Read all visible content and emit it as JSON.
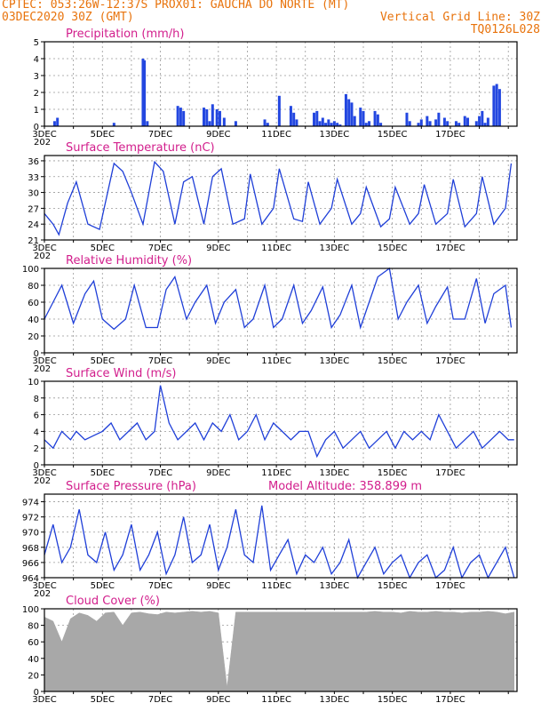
{
  "header": {
    "line1": "CPTEC:   053:26W-12:37S   PROX01: GAUCHA DO NORTE (MT)",
    "line2_left": "03DEC2020 30Z (GMT)",
    "line2_right": "Vertical Grid Line: 30Z",
    "line3_right": "TQ0126L028"
  },
  "x_labels": [
    "3DEC",
    "5DEC",
    "7DEC",
    "9DEC",
    "11DEC",
    "13DEC",
    "15DEC",
    "17DEC"
  ],
  "axis_year_fragment": "202",
  "colors": {
    "line": "#1f3fd8",
    "bar": "#2347e0",
    "title": "#d21e8c",
    "header": "#e8730c",
    "cloud": "#a8a8a8"
  },
  "chart_data": [
    {
      "type": "bar",
      "title": "Precipitation (mm/h)",
      "ylim": [
        0,
        5
      ],
      "yticks": [
        "0",
        "1",
        "2",
        "3",
        "4",
        "5"
      ],
      "x": [
        0.35,
        0.45,
        2.4,
        3.4,
        3.45,
        3.55,
        4.6,
        4.7,
        4.8,
        5.5,
        5.6,
        5.7,
        5.8,
        5.95,
        6.05,
        6.2,
        6.6,
        7.6,
        7.7,
        8.1,
        8.5,
        8.6,
        8.7,
        9.3,
        9.4,
        9.5,
        9.6,
        9.7,
        9.8,
        9.9,
        10.0,
        10.1,
        10.2,
        10.4,
        10.5,
        10.6,
        10.7,
        10.9,
        11.0,
        11.1,
        11.2,
        11.4,
        11.5,
        11.6,
        12.5,
        12.6,
        12.9,
        13.0,
        13.2,
        13.3,
        13.5,
        13.6,
        13.8,
        13.9,
        14.2,
        14.3,
        14.5,
        14.6,
        14.9,
        15.0,
        15.1,
        15.2,
        15.3,
        15.5,
        15.6,
        15.7
      ],
      "values": [
        0.3,
        0.5,
        0.2,
        4.0,
        3.9,
        0.3,
        1.2,
        1.1,
        0.9,
        1.1,
        1.0,
        0.3,
        1.3,
        1.0,
        0.9,
        0.5,
        0.3,
        0.4,
        0.2,
        1.8,
        1.2,
        0.8,
        0.4,
        0.8,
        0.9,
        0.3,
        0.5,
        0.2,
        0.4,
        0.2,
        0.3,
        0.2,
        0.1,
        1.9,
        1.6,
        1.4,
        0.6,
        1.1,
        0.9,
        0.2,
        0.3,
        0.9,
        0.7,
        0.2,
        0.8,
        0.3,
        0.2,
        0.4,
        0.6,
        0.3,
        0.4,
        0.8,
        0.5,
        0.3,
        0.3,
        0.2,
        0.6,
        0.5,
        0.3,
        0.6,
        0.9,
        0.2,
        0.5,
        2.4,
        2.5,
        2.2
      ]
    },
    {
      "type": "line",
      "title": "Surface Temperature (nC)",
      "ylim": [
        21,
        37
      ],
      "yticks": [
        "21",
        "24",
        "27",
        "30",
        "33",
        "36"
      ],
      "x": [
        0,
        0.3,
        0.5,
        0.8,
        1.1,
        1.5,
        1.9,
        2.4,
        2.7,
        3.0,
        3.4,
        3.8,
        4.1,
        4.5,
        4.8,
        5.1,
        5.5,
        5.8,
        6.1,
        6.5,
        6.9,
        7.1,
        7.5,
        7.9,
        8.1,
        8.6,
        8.9,
        9.1,
        9.5,
        9.9,
        10.1,
        10.6,
        10.9,
        11.1,
        11.6,
        11.9,
        12.1,
        12.6,
        12.9,
        13.1,
        13.5,
        13.9,
        14.1,
        14.5,
        14.9,
        15.1,
        15.5,
        15.9,
        16.1
      ],
      "values": [
        26,
        24,
        22,
        28,
        32,
        24,
        23,
        35.5,
        34,
        30,
        24,
        35.8,
        34,
        24,
        32,
        33,
        24,
        33,
        34.5,
        24,
        25,
        33.5,
        24,
        27,
        34.5,
        25,
        24.5,
        32,
        24,
        27,
        32.5,
        24,
        26,
        31,
        23.5,
        25,
        31,
        24,
        26,
        31.5,
        24,
        26,
        32.5,
        23.5,
        26,
        33,
        24,
        27,
        35.5
      ]
    },
    {
      "type": "line",
      "title": "Relative Humidity (%)",
      "ylim": [
        0,
        100
      ],
      "yticks": [
        "0",
        "20",
        "40",
        "60",
        "80",
        "100"
      ],
      "x": [
        0,
        0.3,
        0.6,
        1.0,
        1.4,
        1.7,
        2.0,
        2.4,
        2.8,
        3.1,
        3.5,
        3.9,
        4.2,
        4.5,
        4.9,
        5.2,
        5.6,
        5.9,
        6.2,
        6.6,
        6.9,
        7.2,
        7.6,
        7.9,
        8.2,
        8.6,
        8.9,
        9.2,
        9.6,
        9.9,
        10.2,
        10.6,
        10.9,
        11.2,
        11.5,
        11.9,
        12.2,
        12.5,
        12.9,
        13.2,
        13.5,
        13.9,
        14.1,
        14.5,
        14.9,
        15.2,
        15.5,
        15.9,
        16.1
      ],
      "values": [
        40,
        60,
        80,
        35,
        70,
        85,
        40,
        28,
        40,
        80,
        30,
        30,
        75,
        90,
        40,
        60,
        80,
        35,
        60,
        75,
        30,
        40,
        80,
        30,
        40,
        80,
        35,
        50,
        78,
        30,
        45,
        80,
        30,
        60,
        90,
        100,
        40,
        60,
        80,
        35,
        55,
        78,
        40,
        40,
        88,
        35,
        70,
        80,
        30
      ]
    },
    {
      "type": "line",
      "title": "Surface Wind (m/s)",
      "ylim": [
        0,
        10
      ],
      "yticks": [
        "0",
        "2",
        "4",
        "6",
        "8",
        "10"
      ],
      "x": [
        0,
        0.3,
        0.6,
        0.9,
        1.1,
        1.4,
        1.7,
        2.0,
        2.3,
        2.6,
        2.9,
        3.2,
        3.5,
        3.8,
        4.0,
        4.3,
        4.6,
        4.9,
        5.2,
        5.5,
        5.8,
        6.1,
        6.4,
        6.7,
        7.0,
        7.3,
        7.6,
        7.9,
        8.2,
        8.5,
        8.8,
        9.1,
        9.4,
        9.7,
        10.0,
        10.3,
        10.6,
        10.9,
        11.2,
        11.5,
        11.8,
        12.1,
        12.4,
        12.7,
        13.0,
        13.3,
        13.6,
        13.9,
        14.2,
        14.5,
        14.8,
        15.1,
        15.4,
        15.7,
        16.0,
        16.2
      ],
      "values": [
        3,
        2,
        4,
        3,
        4,
        3,
        3.5,
        4,
        5,
        3,
        4,
        5,
        3,
        4,
        9.5,
        5,
        3,
        4,
        5,
        3,
        5,
        4,
        6,
        3,
        4,
        6,
        3,
        5,
        4,
        3,
        4,
        4,
        1,
        3,
        4,
        2,
        3,
        4,
        2,
        3,
        4,
        2,
        4,
        3,
        4,
        3,
        6,
        4,
        2,
        3,
        4,
        2,
        3,
        4,
        3,
        3
      ]
    },
    {
      "type": "line",
      "title": "Surface Pressure (hPa)",
      "annotation": "Model Altitude: 358.899  m",
      "ylim": [
        964,
        975
      ],
      "yticks": [
        "964",
        "966",
        "968",
        "970",
        "972",
        "974"
      ],
      "x": [
        0,
        0.3,
        0.6,
        0.9,
        1.2,
        1.5,
        1.8,
        2.1,
        2.4,
        2.7,
        3.0,
        3.3,
        3.6,
        3.9,
        4.2,
        4.5,
        4.8,
        5.1,
        5.4,
        5.7,
        6.0,
        6.3,
        6.6,
        6.9,
        7.2,
        7.5,
        7.8,
        8.1,
        8.4,
        8.7,
        9.0,
        9.3,
        9.6,
        9.9,
        10.2,
        10.5,
        10.8,
        11.1,
        11.4,
        11.7,
        12.0,
        12.3,
        12.6,
        12.9,
        13.2,
        13.5,
        13.8,
        14.1,
        14.4,
        14.7,
        15.0,
        15.3,
        15.6,
        15.9,
        16.2
      ],
      "values": [
        967,
        971,
        966,
        968,
        973,
        967,
        966,
        970,
        965,
        967,
        971,
        965,
        967,
        970,
        964.5,
        967,
        972,
        966,
        967,
        971,
        965,
        968,
        973,
        967,
        966,
        973.5,
        965,
        967,
        969,
        964.5,
        967,
        966,
        968,
        964.5,
        966,
        969,
        964,
        966,
        968,
        964.5,
        966,
        967,
        964,
        966,
        967,
        964,
        965,
        968,
        964,
        966,
        967,
        964,
        966,
        968,
        964
      ]
    },
    {
      "type": "area",
      "title": "Cloud Cover (%)",
      "ylim": [
        0,
        100
      ],
      "yticks": [
        "0",
        "20",
        "40",
        "60",
        "80",
        "100"
      ],
      "x": [
        0,
        0.3,
        0.6,
        0.9,
        1.2,
        1.5,
        1.8,
        2.1,
        2.4,
        2.7,
        3.0,
        3.3,
        3.6,
        3.9,
        4.2,
        4.5,
        4.8,
        5.1,
        5.4,
        5.7,
        6.0,
        6.3,
        6.6,
        6.9,
        7.2,
        7.5,
        7.8,
        8.1,
        8.4,
        8.7,
        9.0,
        9.3,
        9.6,
        9.9,
        10.2,
        10.5,
        10.8,
        11.1,
        11.4,
        11.7,
        12.0,
        12.3,
        12.6,
        12.9,
        13.2,
        13.5,
        13.8,
        14.1,
        14.4,
        14.7,
        15.0,
        15.3,
        15.6,
        15.9,
        16.2
      ],
      "values": [
        90,
        85,
        60,
        88,
        95,
        92,
        85,
        95,
        96,
        80,
        95,
        96,
        94,
        93,
        96,
        95,
        96,
        97,
        96,
        97,
        95,
        5,
        96,
        96,
        96,
        96,
        96,
        96,
        96,
        96,
        96,
        96,
        96,
        96,
        96,
        96,
        96,
        96,
        97,
        96,
        96,
        95,
        97,
        96,
        96,
        97,
        96,
        96,
        95,
        96,
        96,
        97,
        96,
        94,
        96
      ]
    }
  ]
}
